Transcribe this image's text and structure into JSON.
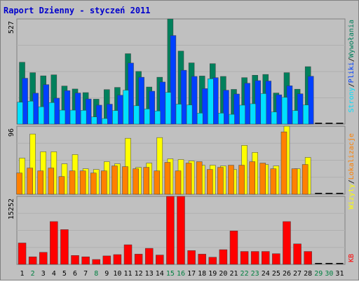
{
  "title": "Raport Dzienny -  styczeń 2011",
  "colors": {
    "background": "#c0c0c0",
    "title": "#0000cc",
    "wizyty": "#00805c",
    "strony": "#0040ff",
    "pliki": "#00e0ff",
    "wizyty_unikalne": "#ffff00",
    "lokalizacje": "#ff8000",
    "kb": "#ff0000",
    "weekday": "#000000",
    "weekend": "#008040"
  },
  "chart_data": [
    {
      "type": "bar",
      "panel": "top",
      "ymax_label": "527",
      "ylim": [
        0,
        527
      ],
      "right_label_parts": [
        "Wywołania",
        "/",
        "Pliki",
        "/",
        "Strony"
      ],
      "categories": [
        "1",
        "2",
        "3",
        "4",
        "5",
        "6",
        "7",
        "8",
        "9",
        "10",
        "11",
        "12",
        "13",
        "14",
        "15",
        "16",
        "17",
        "18",
        "19",
        "20",
        "21",
        "22",
        "23",
        "24",
        "25",
        "26",
        "27",
        "28",
        "29",
        "30",
        "31"
      ],
      "series": [
        {
          "name": "Wywołania",
          "values": [
            310,
            258,
            242,
            247,
            191,
            176,
            158,
            125,
            173,
            184,
            353,
            264,
            186,
            235,
            527,
            366,
            307,
            241,
            303,
            239,
            174,
            233,
            245,
            249,
            156,
            258,
            175,
            288,
            0,
            0,
            0
          ]
        },
        {
          "name": "Pliki",
          "values": [
            230,
            155,
            198,
            130,
            168,
            156,
            126,
            95,
            100,
            145,
            306,
            235,
            165,
            211,
            444,
            270,
            239,
            178,
            233,
            170,
            151,
            205,
            218,
            216,
            147,
            192,
            152,
            240,
            0,
            0,
            0
          ]
        },
        {
          "name": "Strony",
          "values": [
            110,
            115,
            87,
            108,
            70,
            70,
            69,
            36,
            28,
            68,
            170,
            92,
            76,
            66,
            159,
            100,
            96,
            55,
            227,
            55,
            49,
            95,
            102,
            153,
            61,
            134,
            68,
            96,
            0,
            0,
            0
          ]
        }
      ]
    },
    {
      "type": "bar",
      "panel": "middle",
      "ymax_label": "96",
      "ylim": [
        0,
        96
      ],
      "right_label_parts": [
        "Lokalizacje",
        "/",
        "Wizyty"
      ],
      "categories": [
        "1",
        "2",
        "3",
        "4",
        "5",
        "6",
        "7",
        "8",
        "9",
        "10",
        "11",
        "12",
        "13",
        "14",
        "15",
        "16",
        "17",
        "18",
        "19",
        "20",
        "21",
        "22",
        "23",
        "24",
        "25",
        "26",
        "27",
        "28",
        "29",
        "30",
        "31"
      ],
      "series": [
        {
          "name": "Wizyty",
          "values": [
            51,
            85,
            60,
            60,
            43,
            56,
            36,
            35,
            46,
            43,
            79,
            38,
            44,
            80,
            50,
            49,
            47,
            41,
            41,
            40,
            35,
            69,
            59,
            42,
            40,
            96,
            36,
            52,
            0,
            0,
            0
          ]
        },
        {
          "name": "Lokalizacje",
          "values": [
            30,
            37,
            33,
            37,
            25,
            33,
            33,
            30,
            33,
            40,
            39,
            36,
            38,
            33,
            45,
            33,
            44,
            46,
            35,
            38,
            41,
            41,
            46,
            44,
            36,
            88,
            36,
            42,
            0,
            0,
            0
          ]
        }
      ]
    },
    {
      "type": "bar",
      "panel": "bottom",
      "ymax_label": "15252",
      "ylim": [
        0,
        15252
      ],
      "right_label_parts": [
        "KB"
      ],
      "categories": [
        "1",
        "2",
        "3",
        "4",
        "5",
        "6",
        "7",
        "8",
        "9",
        "10",
        "11",
        "12",
        "13",
        "14",
        "15",
        "16",
        "17",
        "18",
        "19",
        "20",
        "21",
        "22",
        "23",
        "24",
        "25",
        "26",
        "27",
        "28",
        "29",
        "30",
        "31"
      ],
      "series": [
        {
          "name": "KB",
          "values": [
            4800,
            1700,
            2700,
            9600,
            7800,
            2000,
            1700,
            1100,
            1900,
            2200,
            4400,
            2300,
            3600,
            2100,
            15252,
            15252,
            3100,
            2300,
            1600,
            3300,
            7500,
            2900,
            2900,
            2900,
            2400,
            9600,
            4600,
            2900,
            0,
            0,
            0
          ]
        }
      ]
    }
  ],
  "x_axis": {
    "labels": [
      "1",
      "2",
      "3",
      "4",
      "5",
      "6",
      "7",
      "8",
      "9",
      "10",
      "11",
      "12",
      "13",
      "14",
      "15",
      "16",
      "17",
      "18",
      "19",
      "20",
      "21",
      "22",
      "23",
      "24",
      "25",
      "26",
      "27",
      "28",
      "29",
      "30",
      "31"
    ],
    "weekend": [
      false,
      true,
      false,
      false,
      false,
      false,
      false,
      true,
      false,
      false,
      false,
      false,
      false,
      false,
      true,
      true,
      false,
      false,
      false,
      false,
      false,
      true,
      true,
      false,
      false,
      false,
      false,
      false,
      true,
      true,
      false
    ]
  }
}
